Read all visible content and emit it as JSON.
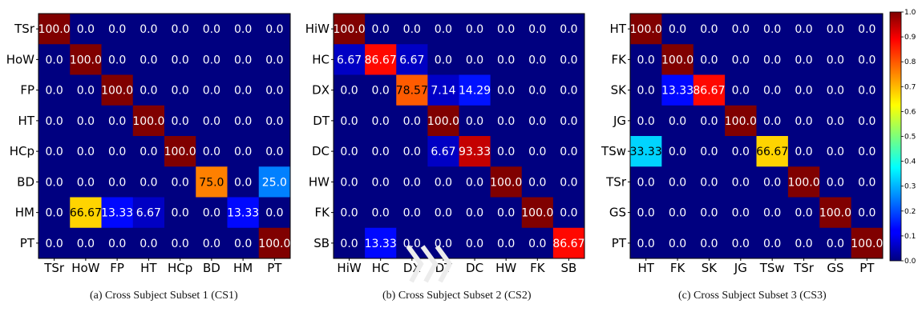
{
  "chart_data": [
    {
      "type": "heatmap",
      "caption": "(a)  Cross Subject Subset 1 (CS1)",
      "rows": [
        "TSr",
        "HoW",
        "FP",
        "HT",
        "HCp",
        "BD",
        "HM",
        "PT"
      ],
      "cols": [
        "TSr",
        "HoW",
        "FP",
        "HT",
        "HCp",
        "BD",
        "HM",
        "PT"
      ],
      "values": [
        [
          "100.0",
          "0.0",
          "0.0",
          "0.0",
          "0.0",
          "0.0",
          "0.0",
          "0.0"
        ],
        [
          "0.0",
          "100.0",
          "0.0",
          "0.0",
          "0.0",
          "0.0",
          "0.0",
          "0.0"
        ],
        [
          "0.0",
          "0.0",
          "100.0",
          "0.0",
          "0.0",
          "0.0",
          "0.0",
          "0.0"
        ],
        [
          "0.0",
          "0.0",
          "0.0",
          "100.0",
          "0.0",
          "0.0",
          "0.0",
          "0.0"
        ],
        [
          "0.0",
          "0.0",
          "0.0",
          "0.0",
          "100.0",
          "0.0",
          "0.0",
          "0.0"
        ],
        [
          "0.0",
          "0.0",
          "0.0",
          "0.0",
          "0.0",
          "75.0",
          "0.0",
          "25.0"
        ],
        [
          "0.0",
          "66.67",
          "13.33",
          "6.67",
          "0.0",
          "0.0",
          "13.33",
          "0.0"
        ],
        [
          "0.0",
          "0.0",
          "0.0",
          "0.0",
          "0.0",
          "0.0",
          "0.0",
          "100.0"
        ]
      ]
    },
    {
      "type": "heatmap",
      "caption": "(b)  Cross Subject Subset 2 (CS2)",
      "rows": [
        "HiW",
        "HC",
        "DX",
        "DT",
        "DC",
        "HW",
        "FK",
        "SB"
      ],
      "cols": [
        "HiW",
        "HC",
        "DX",
        "DT",
        "DC",
        "HW",
        "FK",
        "SB"
      ],
      "values": [
        [
          "100.0",
          "0.0",
          "0.0",
          "0.0",
          "0.0",
          "0.0",
          "0.0",
          "0.0"
        ],
        [
          "6.67",
          "86.67",
          "6.67",
          "0.0",
          "0.0",
          "0.0",
          "0.0",
          "0.0"
        ],
        [
          "0.0",
          "0.0",
          "78.57",
          "7.14",
          "14.29",
          "0.0",
          "0.0",
          "0.0"
        ],
        [
          "0.0",
          "0.0",
          "0.0",
          "100.0",
          "0.0",
          "0.0",
          "0.0",
          "0.0"
        ],
        [
          "0.0",
          "0.0",
          "0.0",
          "6.67",
          "93.33",
          "0.0",
          "0.0",
          "0.0"
        ],
        [
          "0.0",
          "0.0",
          "0.0",
          "0.0",
          "0.0",
          "100.0",
          "0.0",
          "0.0"
        ],
        [
          "0.0",
          "0.0",
          "0.0",
          "0.0",
          "0.0",
          "0.0",
          "100.0",
          "0.0"
        ],
        [
          "0.0",
          "13.33",
          "0.0",
          "0.0",
          "0.0",
          "0.0",
          "0.0",
          "86.67"
        ]
      ]
    },
    {
      "type": "heatmap",
      "caption": "(c)  Cross Subject Subset 3 (CS3)",
      "rows": [
        "HT",
        "FK",
        "SK",
        "JG",
        "TSw",
        "TSr",
        "GS",
        "PT"
      ],
      "cols": [
        "HT",
        "FK",
        "SK",
        "JG",
        "TSw",
        "TSr",
        "GS",
        "PT"
      ],
      "values": [
        [
          "100.0",
          "0.0",
          "0.0",
          "0.0",
          "0.0",
          "0.0",
          "0.0",
          "0.0"
        ],
        [
          "0.0",
          "100.0",
          "0.0",
          "0.0",
          "0.0",
          "0.0",
          "0.0",
          "0.0"
        ],
        [
          "0.0",
          "13.33",
          "86.67",
          "0.0",
          "0.0",
          "0.0",
          "0.0",
          "0.0"
        ],
        [
          "0.0",
          "0.0",
          "0.0",
          "100.0",
          "0.0",
          "0.0",
          "0.0",
          "0.0"
        ],
        [
          "33.33",
          "0.0",
          "0.0",
          "0.0",
          "66.67",
          "0.0",
          "0.0",
          "0.0"
        ],
        [
          "0.0",
          "0.0",
          "0.0",
          "0.0",
          "0.0",
          "100.0",
          "0.0",
          "0.0"
        ],
        [
          "0.0",
          "0.0",
          "0.0",
          "0.0",
          "0.0",
          "0.0",
          "100.0",
          "0.0"
        ],
        [
          "0.0",
          "0.0",
          "0.0",
          "0.0",
          "0.0",
          "0.0",
          "0.0",
          "100.0"
        ]
      ]
    }
  ],
  "colorbar": {
    "colormap": "jet",
    "range": [
      0,
      1
    ],
    "ticks": [
      "0.0",
      "0.1",
      "0.2",
      "0.3",
      "0.4",
      "0.5",
      "0.6",
      "0.7",
      "0.8",
      "0.9",
      "1.0"
    ]
  }
}
